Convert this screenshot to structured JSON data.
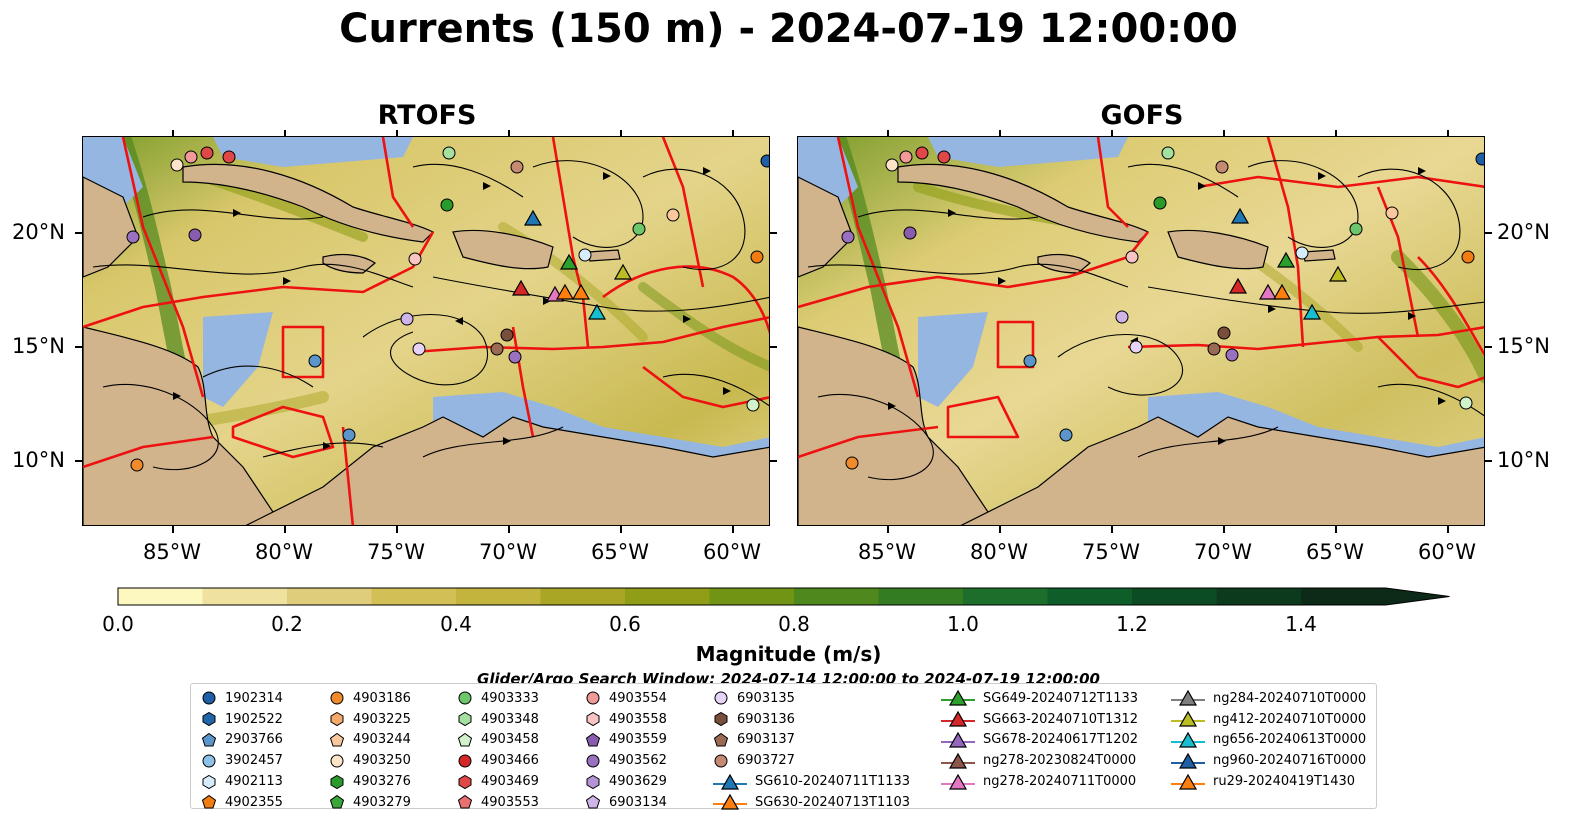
{
  "title": "Currents (150 m) - 2024-07-19 12:00:00",
  "panels": [
    {
      "id": "rtofs",
      "title": "RTOFS"
    },
    {
      "id": "gofs",
      "title": "GOFS"
    }
  ],
  "axes": {
    "lon_ticks": [
      "85°W",
      "80°W",
      "75°W",
      "70°W",
      "65°W",
      "60°W"
    ],
    "lat_ticks": [
      "20°N",
      "15°N",
      "10°N"
    ]
  },
  "colorbar": {
    "label": "Magnitude (m/s)",
    "ticks": [
      "0.0",
      "0.2",
      "0.4",
      "0.6",
      "0.8",
      "1.0",
      "1.2",
      "1.4"
    ],
    "range": [
      0,
      1.5
    ],
    "colors": [
      "#fdf7c0",
      "#efe2a0",
      "#e0cd7c",
      "#d2bf56",
      "#c2b43c",
      "#a8a624",
      "#8f9e16",
      "#729414",
      "#4f881c",
      "#347c22",
      "#1c6e2a",
      "#0f5e2a",
      "#0c4c24",
      "#0b3a1d",
      "#0d2a18"
    ]
  },
  "search_window": "Glider/Argo Search Window: 2024-07-14 12:00:00 to 2024-07-19 12:00:00",
  "legend": {
    "columns": [
      [
        {
          "label": "1902314",
          "marker": "circle",
          "color": "#1f5fa6"
        },
        {
          "label": "1902522",
          "marker": "hexagon",
          "color": "#2266aa"
        },
        {
          "label": "2903766",
          "marker": "pentagon",
          "color": "#5b95c9"
        },
        {
          "label": "3902457",
          "marker": "circle",
          "color": "#8ec1e8"
        },
        {
          "label": "4902113",
          "marker": "hexagon",
          "color": "#d6ecfb"
        },
        {
          "label": "4902355",
          "marker": "pentagon",
          "color": "#f07c12"
        }
      ],
      [
        {
          "label": "4903186",
          "marker": "circle",
          "color": "#f08a2a"
        },
        {
          "label": "4903225",
          "marker": "hexagon",
          "color": "#f5aa6a"
        },
        {
          "label": "4903244",
          "marker": "pentagon",
          "color": "#fbc79c"
        },
        {
          "label": "4903250",
          "marker": "circle",
          "color": "#fde3c8"
        },
        {
          "label": "4903276",
          "marker": "hexagon",
          "color": "#2a9a2a"
        },
        {
          "label": "4903279",
          "marker": "pentagon",
          "color": "#3aa63a"
        }
      ],
      [
        {
          "label": "4903333",
          "marker": "circle",
          "color": "#6cc66c"
        },
        {
          "label": "4903348",
          "marker": "hexagon",
          "color": "#a4e0a0"
        },
        {
          "label": "4903458",
          "marker": "pentagon",
          "color": "#d2f2cc"
        },
        {
          "label": "4903466",
          "marker": "circle",
          "color": "#d62728"
        },
        {
          "label": "4903469",
          "marker": "hexagon",
          "color": "#e04848"
        },
        {
          "label": "4903553",
          "marker": "pentagon",
          "color": "#ea7070"
        }
      ],
      [
        {
          "label": "4903554",
          "marker": "circle",
          "color": "#f29a9a"
        },
        {
          "label": "4903558",
          "marker": "hexagon",
          "color": "#f8c4c4"
        },
        {
          "label": "4903559",
          "marker": "pentagon",
          "color": "#8a5cb0"
        },
        {
          "label": "4903562",
          "marker": "circle",
          "color": "#9a70c0"
        },
        {
          "label": "4903629",
          "marker": "hexagon",
          "color": "#b494d6"
        },
        {
          "label": "6903134",
          "marker": "pentagon",
          "color": "#cfb4ea"
        }
      ],
      [
        {
          "label": "6903135",
          "marker": "circle",
          "color": "#e6d4f6"
        },
        {
          "label": "6903136",
          "marker": "hexagon",
          "color": "#7a4e3c"
        },
        {
          "label": "6903137",
          "marker": "pentagon",
          "color": "#9a6a52"
        },
        {
          "label": "6903727",
          "marker": "circle",
          "color": "#c48a72"
        },
        {
          "label": "SG610-20240711T1133",
          "marker": "triangle-line",
          "color": "#1f77b4"
        },
        {
          "label": "SG630-20240713T1103",
          "marker": "triangle-line",
          "color": "#ff7f0e"
        }
      ],
      [
        {
          "label": "SG649-20240712T1133",
          "marker": "triangle-line",
          "color": "#2ca02c"
        },
        {
          "label": "SG663-20240710T1312",
          "marker": "triangle-line",
          "color": "#d62728"
        },
        {
          "label": "SG678-20240617T1202",
          "marker": "triangle-line",
          "color": "#9467bd"
        },
        {
          "label": "ng278-20230824T0000",
          "marker": "triangle-line",
          "color": "#8c564b"
        },
        {
          "label": "ng278-20240711T0000",
          "marker": "triangle-line",
          "color": "#e377c2"
        }
      ],
      [
        {
          "label": "ng284-20240710T0000",
          "marker": "triangle-line",
          "color": "#7f7f7f"
        },
        {
          "label": "ng412-20240710T0000",
          "marker": "triangle-line",
          "color": "#bcbd22"
        },
        {
          "label": "ng656-20240613T0000",
          "marker": "triangle-line",
          "color": "#17becf"
        },
        {
          "label": "ng960-20240716T0000",
          "marker": "triangle-line",
          "color": "#1f5fa6"
        },
        {
          "label": "ru29-20240419T1430",
          "marker": "triangle-line",
          "color": "#ff7f0e"
        }
      ]
    ]
  },
  "map_colors": {
    "land": "#d2b48c",
    "shelf": "#95b6e0",
    "fronts": "#ee1111",
    "streamlines": "#000000"
  }
}
